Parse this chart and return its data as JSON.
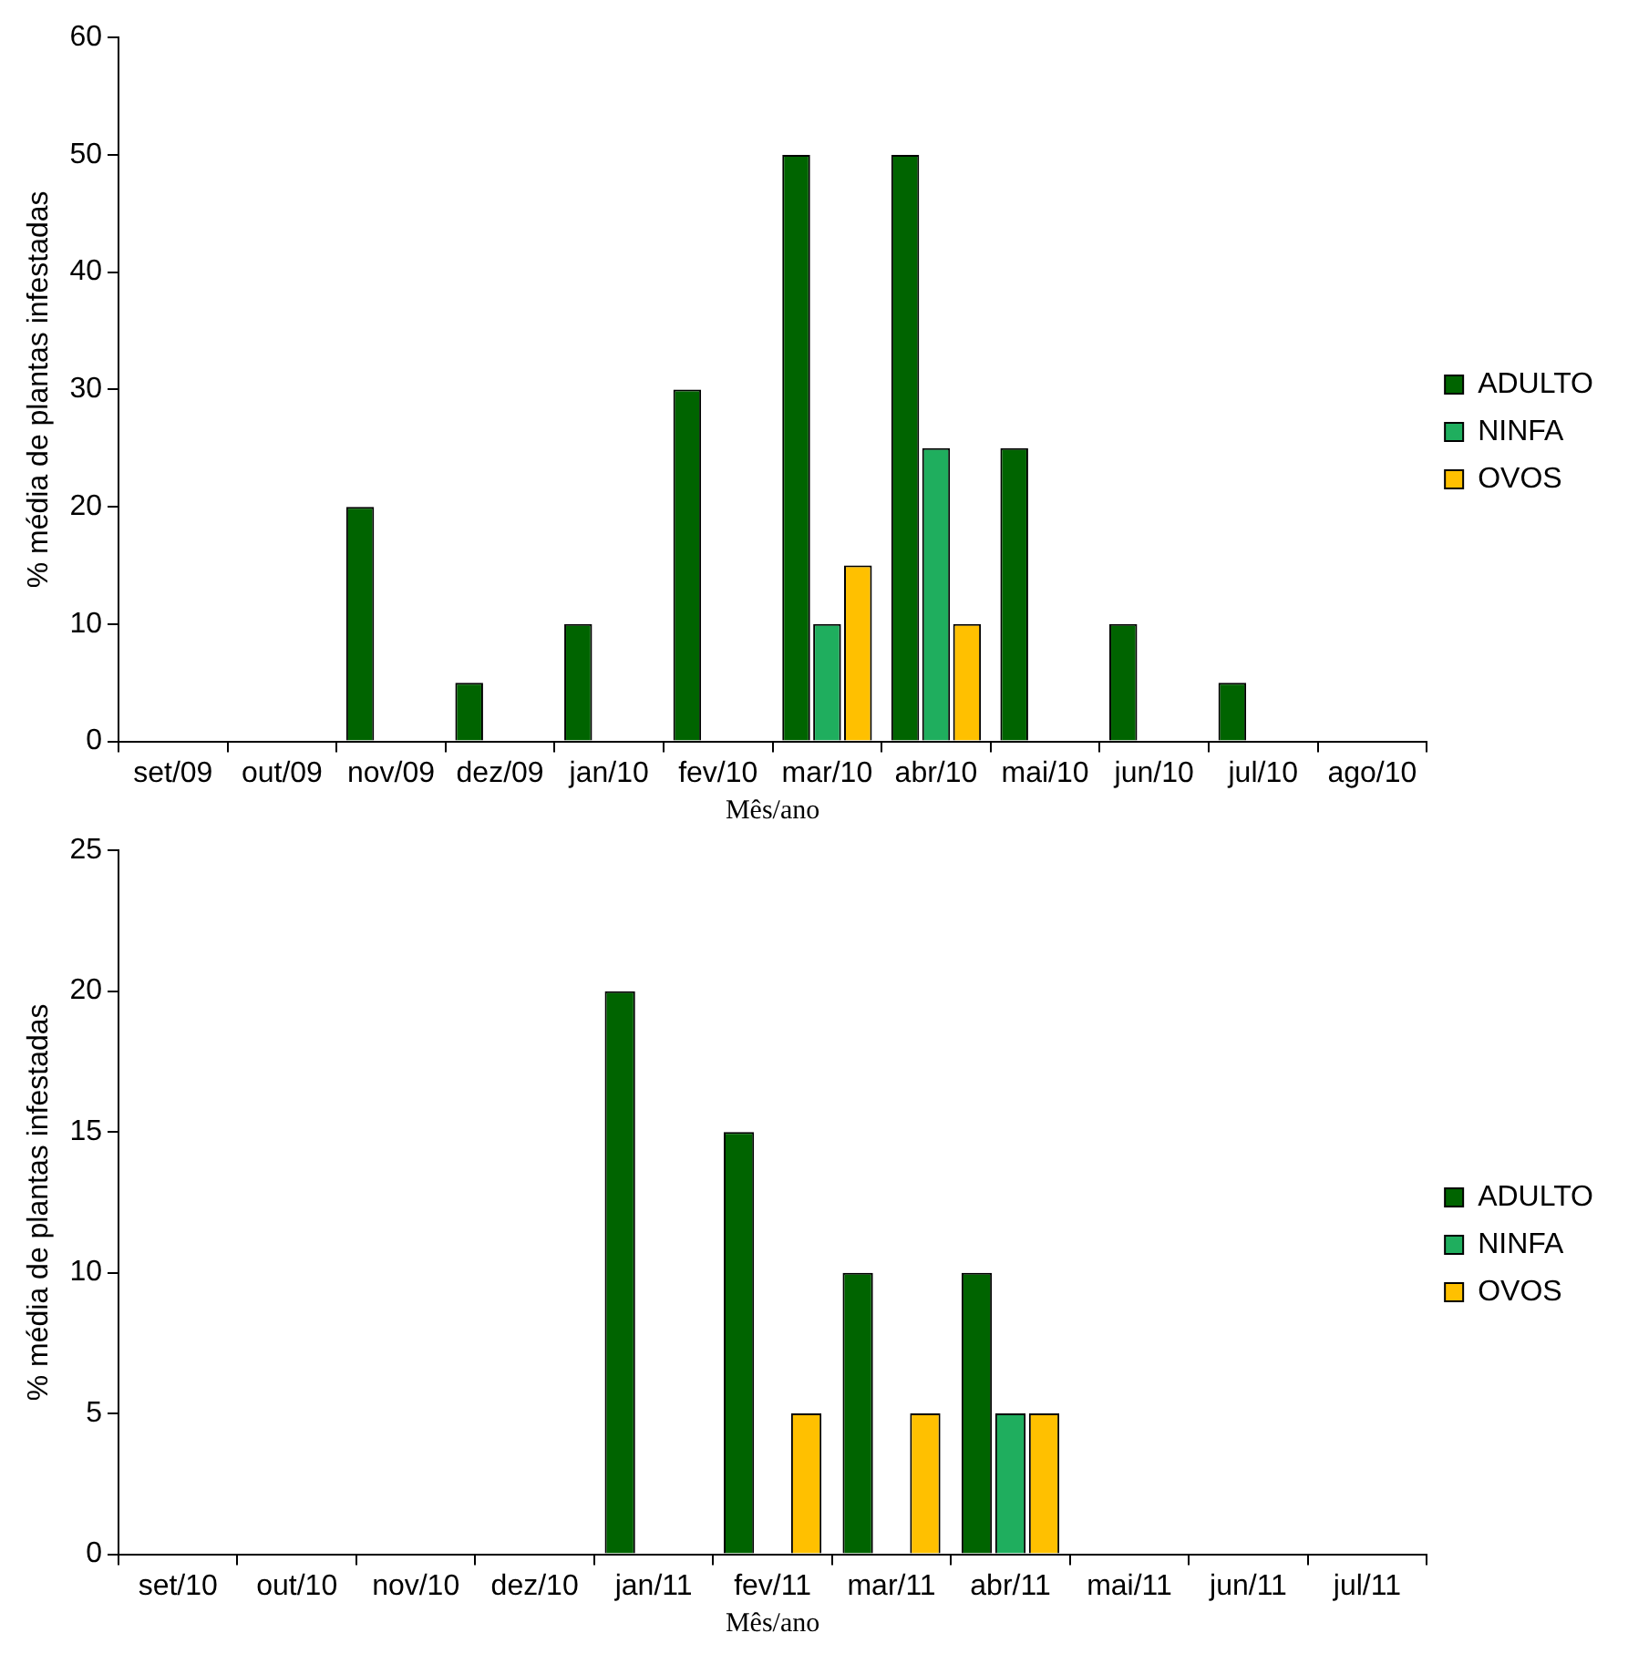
{
  "chart_data": [
    {
      "type": "bar",
      "xlabel": "Mês/ano",
      "ylabel": "% média de plantas infestadas",
      "categories": [
        "set/09",
        "out/09",
        "nov/09",
        "dez/09",
        "jan/10",
        "fev/10",
        "mar/10",
        "abr/10",
        "mai/10",
        "jun/10",
        "jul/10",
        "ago/10"
      ],
      "series": [
        {
          "name": "ADULTO",
          "color": "#006400",
          "values": [
            0,
            0,
            20,
            5,
            10,
            30,
            50,
            50,
            25,
            10,
            5,
            0
          ]
        },
        {
          "name": "NINFA",
          "color": "#1fae5e",
          "values": [
            0,
            0,
            0,
            0,
            0,
            0,
            10,
            25,
            0,
            0,
            0,
            0
          ]
        },
        {
          "name": "OVOS",
          "color": "#ffc000",
          "values": [
            0,
            0,
            0,
            0,
            0,
            0,
            15,
            10,
            0,
            0,
            0,
            0
          ]
        }
      ],
      "ylim": [
        0,
        60
      ],
      "yticks": [
        0,
        10,
        20,
        30,
        40,
        50,
        60
      ],
      "legend": "right"
    },
    {
      "type": "bar",
      "xlabel": "Mês/ano",
      "ylabel": "% média de plantas infestadas",
      "categories": [
        "set/10",
        "out/10",
        "nov/10",
        "dez/10",
        "jan/11",
        "fev/11",
        "mar/11",
        "abr/11",
        "mai/11",
        "jun/11",
        "jul/11"
      ],
      "series": [
        {
          "name": "ADULTO",
          "color": "#006400",
          "values": [
            0,
            0,
            0,
            0,
            20,
            15,
            10,
            10,
            0,
            0,
            0
          ]
        },
        {
          "name": "NINFA",
          "color": "#1fae5e",
          "values": [
            0,
            0,
            0,
            0,
            0,
            0,
            0,
            5,
            0,
            0,
            0
          ]
        },
        {
          "name": "OVOS",
          "color": "#ffc000",
          "values": [
            0,
            0,
            0,
            0,
            0,
            5,
            5,
            5,
            0,
            0,
            0
          ]
        }
      ],
      "ylim": [
        0,
        25
      ],
      "yticks": [
        0,
        5,
        10,
        15,
        20,
        25
      ],
      "legend": "right"
    }
  ]
}
